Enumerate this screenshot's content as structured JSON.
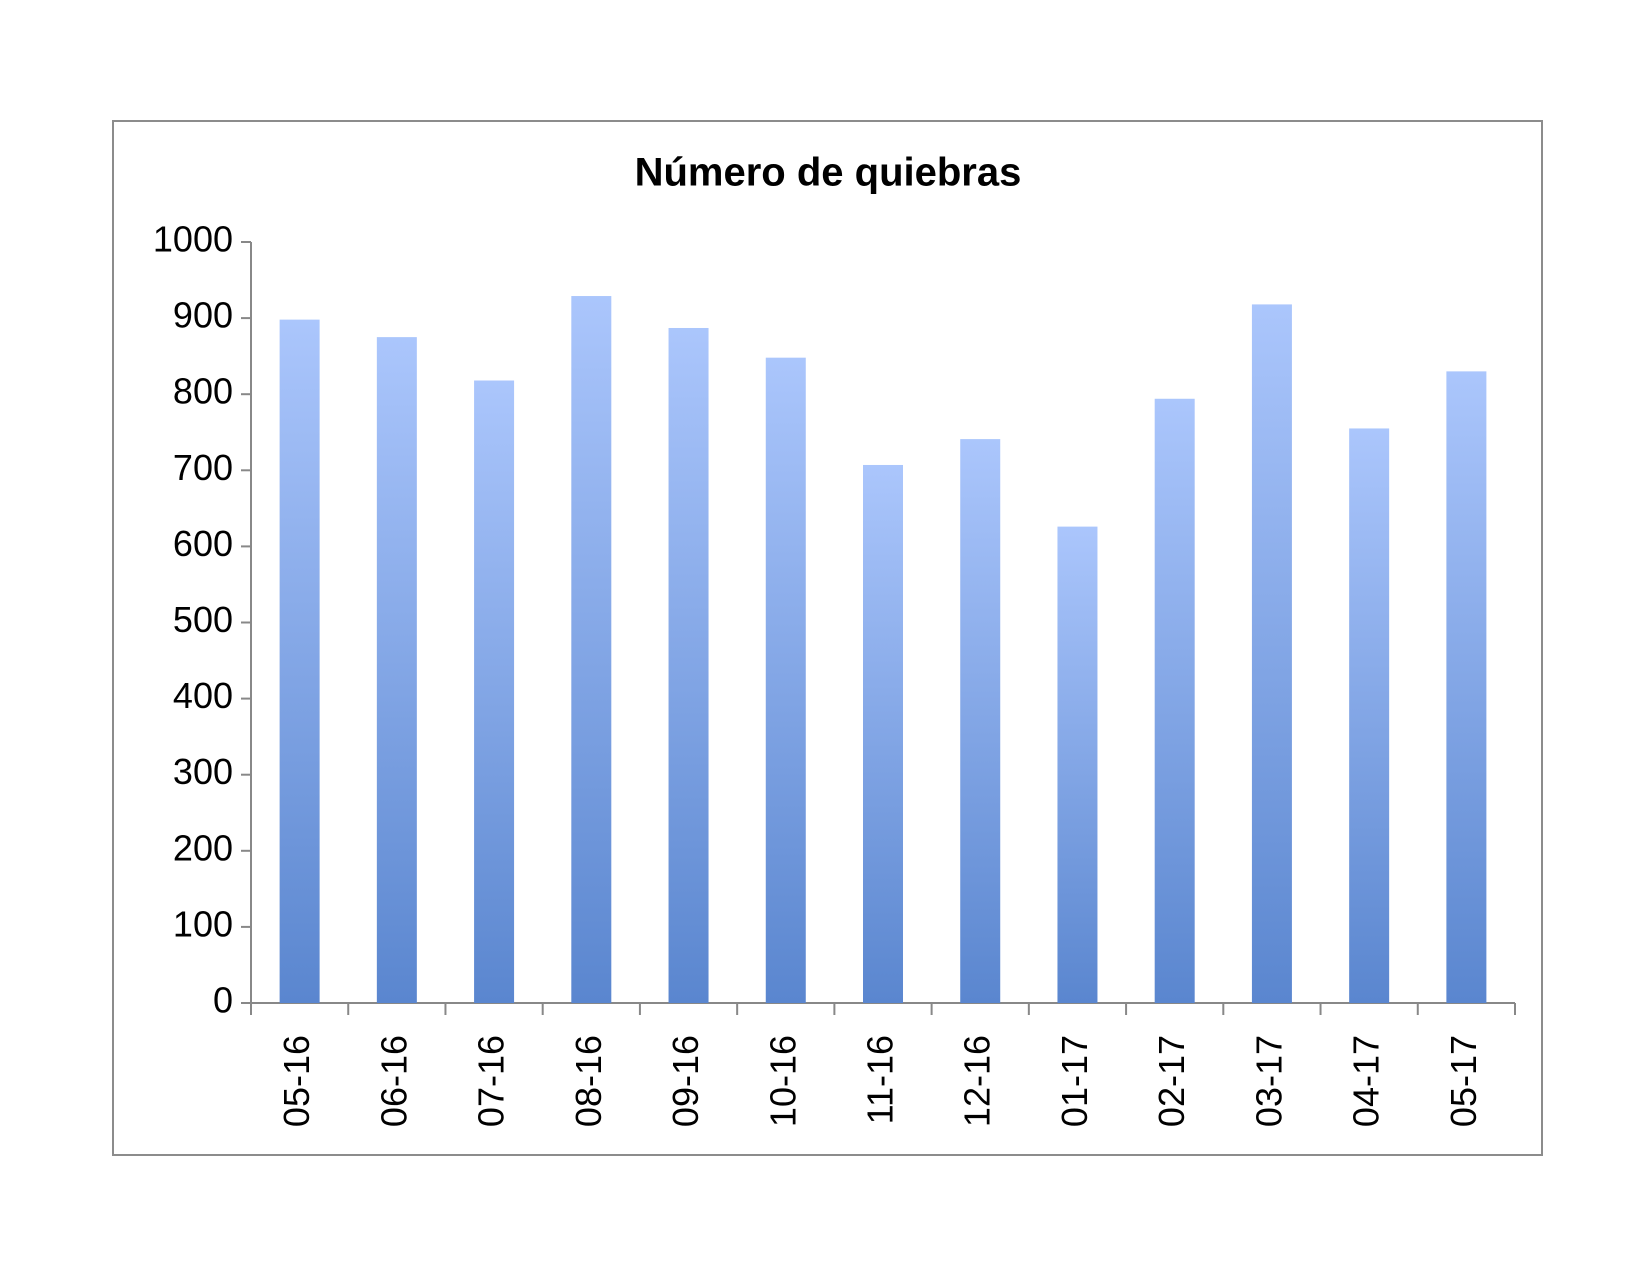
{
  "chart_data": {
    "type": "bar",
    "title": "Número de quiebras",
    "categories": [
      "05-16",
      "06-16",
      "07-16",
      "08-16",
      "09-16",
      "10-16",
      "11-16",
      "12-16",
      "01-17",
      "02-17",
      "03-17",
      "04-17",
      "05-17"
    ],
    "values": [
      898,
      875,
      818,
      929,
      887,
      848,
      707,
      741,
      626,
      794,
      918,
      755,
      830
    ],
    "color": "#7fa3e6",
    "ylim": [
      0,
      1000
    ],
    "yticks": [
      0,
      100,
      200,
      300,
      400,
      500,
      600,
      700,
      800,
      900,
      1000
    ],
    "grid": false
  }
}
